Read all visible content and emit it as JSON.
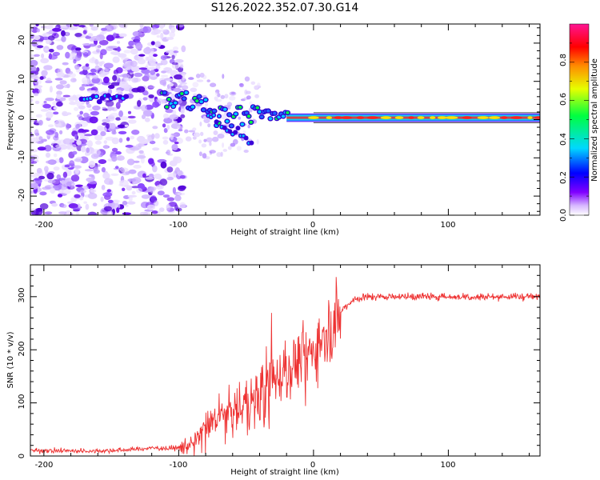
{
  "title": "S126.2022.352.07.30.G14",
  "chart_data": [
    {
      "type": "heatmap",
      "xlabel": "Height of straight line (km)",
      "ylabel": "Frequency (Hz)",
      "xlim": [
        -210,
        168
      ],
      "ylim": [
        -25,
        25
      ],
      "xticks": [
        "-200",
        "-100",
        "0",
        "100"
      ],
      "yticks": [
        "-20",
        "-10",
        "0",
        "10",
        "20"
      ],
      "colorbar": {
        "label": "Normalized spectral amplitude",
        "range": [
          0,
          1
        ],
        "ticks": [
          "0.0",
          "0.2",
          "0.4",
          "0.6",
          "0.8"
        ]
      },
      "ridge": {
        "x": [
          -170,
          -160,
          -150,
          -140,
          -120,
          -110,
          -100,
          -90,
          -80,
          -75,
          -70,
          -65,
          -60,
          -50,
          -40,
          -30,
          -20,
          -10,
          0,
          20,
          50,
          100,
          168
        ],
        "y": [
          6,
          6,
          6,
          6.5,
          7,
          6,
          5.5,
          4.5,
          4,
          3,
          2,
          1.5,
          1,
          1,
          1.5,
          1,
          1,
          0.5,
          0.5,
          0.5,
          0.5,
          0.5,
          0.5
        ]
      }
    },
    {
      "type": "line",
      "xlabel": "Height of straight line (km)",
      "ylabel": "SNR (10 * v/v)",
      "xlim": [
        -210,
        168
      ],
      "ylim": [
        0,
        360
      ],
      "xticks": [
        "-200",
        "-100",
        "0",
        "100"
      ],
      "yticks": [
        "0",
        "100",
        "200",
        "300"
      ],
      "series": [
        {
          "color": "#ee3333",
          "x": [
            -210,
            -180,
            -150,
            -120,
            -100,
            -90,
            -80,
            -70,
            -60,
            -50,
            -40,
            -30,
            -20,
            -10,
            0,
            10,
            20,
            25,
            30,
            40,
            60,
            80,
            100,
            130,
            168
          ],
          "y": [
            10,
            10,
            10,
            15,
            15,
            25,
            50,
            70,
            80,
            100,
            120,
            150,
            160,
            180,
            200,
            240,
            270,
            285,
            295,
            300,
            300,
            300,
            300,
            300,
            300
          ]
        }
      ]
    }
  ]
}
